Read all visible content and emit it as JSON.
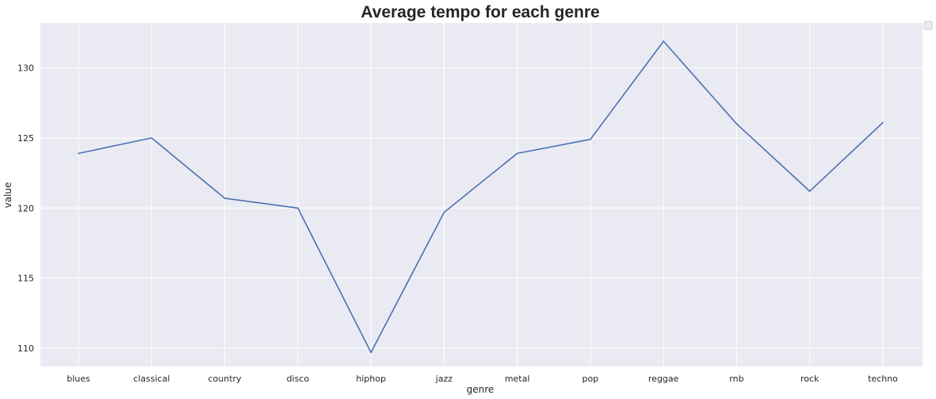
{
  "chart_data": {
    "type": "line",
    "title": "Average tempo for each genre",
    "xlabel": "genre",
    "ylabel": "value",
    "categories": [
      "blues",
      "classical",
      "country",
      "disco",
      "hiphop",
      "jazz",
      "metal",
      "pop",
      "reggae",
      "rnb",
      "rock",
      "techno"
    ],
    "series": [
      {
        "values": [
          123.9,
          125.0,
          120.7,
          120.0,
          109.7,
          119.7,
          123.9,
          124.9,
          131.9,
          126.0,
          121.2,
          126.1
        ],
        "color": "#4c72b0"
      }
    ],
    "ylim": [
      108.7,
      133.2
    ],
    "yticks": [
      110,
      115,
      120,
      125,
      130
    ],
    "grid": true,
    "background": "#eaeaf2",
    "grid_color": "#ffffff",
    "legend": "top-right"
  }
}
